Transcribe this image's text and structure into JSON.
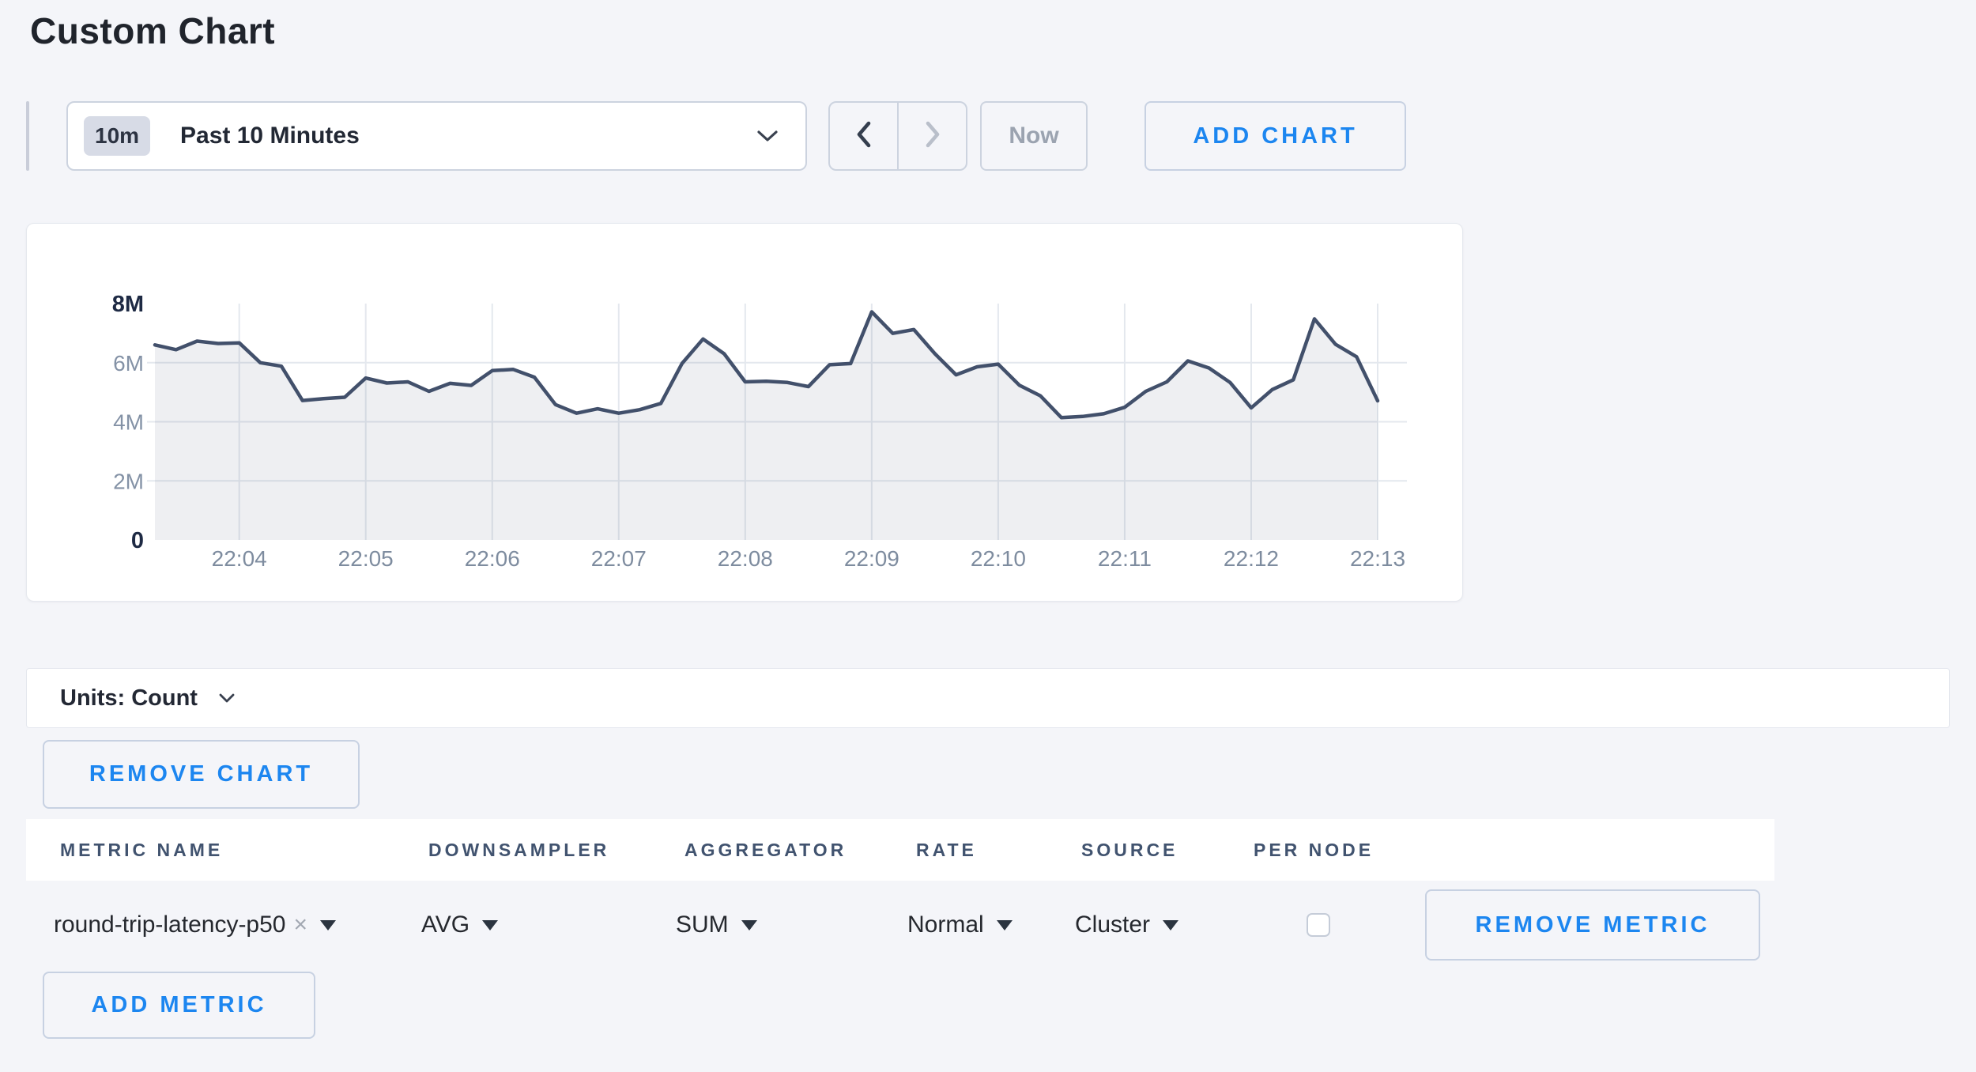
{
  "page": {
    "title": "Custom Chart"
  },
  "toolbar": {
    "time_window": {
      "badge": "10m",
      "label": "Past 10 Minutes"
    },
    "now_label": "Now",
    "add_chart_label": "ADD CHART"
  },
  "icons": {
    "time_window_caret": "chevron-down",
    "prev": "chevron-left",
    "next": "chevron-right",
    "units_caret": "chevron-down",
    "metric_clear": "x-close",
    "select_caret": "triangle-down",
    "checkbox": "checkbox-unchecked"
  },
  "chart_data": {
    "type": "area",
    "title": "",
    "xlabel": "",
    "ylabel": "",
    "ylim": [
      0,
      8
    ],
    "value_unit": "count, millions",
    "grid": true,
    "legend": "none",
    "x_start_label": "22:03:20",
    "x_interval_seconds": 10,
    "x_ticks": [
      "22:04",
      "22:05",
      "22:06",
      "22:07",
      "22:08",
      "22:09",
      "22:10",
      "22:11",
      "22:12",
      "22:13"
    ],
    "y_ticks": [
      {
        "label": "8M",
        "value": 8,
        "emphasis": true
      },
      {
        "label": "6M",
        "value": 6,
        "emphasis": false
      },
      {
        "label": "4M",
        "value": 4,
        "emphasis": false
      },
      {
        "label": "2M",
        "value": 2,
        "emphasis": false
      },
      {
        "label": "0",
        "value": 0,
        "emphasis": true
      }
    ],
    "series": [
      {
        "name": "round-trip-latency-p50",
        "values": [
          6.6,
          6.44,
          6.73,
          6.65,
          6.67,
          6.0,
          5.88,
          4.72,
          4.78,
          4.83,
          5.48,
          5.31,
          5.35,
          5.03,
          5.3,
          5.23,
          5.73,
          5.77,
          5.51,
          4.58,
          4.29,
          4.44,
          4.29,
          4.41,
          4.62,
          5.97,
          6.8,
          6.3,
          5.35,
          5.37,
          5.33,
          5.19,
          5.93,
          5.97,
          7.72,
          6.99,
          7.12,
          6.3,
          5.59,
          5.86,
          5.95,
          5.24,
          4.88,
          4.14,
          4.18,
          4.27,
          4.49,
          5.03,
          5.35,
          6.06,
          5.82,
          5.33,
          4.47,
          5.09,
          5.42,
          7.48,
          6.62,
          6.2,
          4.71
        ]
      }
    ]
  },
  "units_bar": {
    "label": "Units: Count"
  },
  "chart_actions": {
    "remove_chart_label": "REMOVE CHART"
  },
  "metrics_table": {
    "headers": [
      "METRIC NAME",
      "DOWNSAMPLER",
      "AGGREGATOR",
      "RATE",
      "SOURCE",
      "PER NODE"
    ],
    "rows": [
      {
        "metric_name": "round-trip-latency-p50",
        "downsampler": "AVG",
        "aggregator": "SUM",
        "rate": "Normal",
        "source": "Cluster",
        "per_node_checked": false
      }
    ],
    "remove_metric_label": "REMOVE METRIC",
    "add_metric_label": "ADD METRIC"
  },
  "colors": {
    "page_bg": "#f4f5f9",
    "accent_blue": "#1c86f0",
    "chart_line": "#42506b",
    "chart_fill": "rgba(66,80,107,0.09)",
    "grid_line": "#e4e8ee",
    "axis_tick": "#8492a6",
    "axis_tick_emphasis": "#1e2a44"
  }
}
